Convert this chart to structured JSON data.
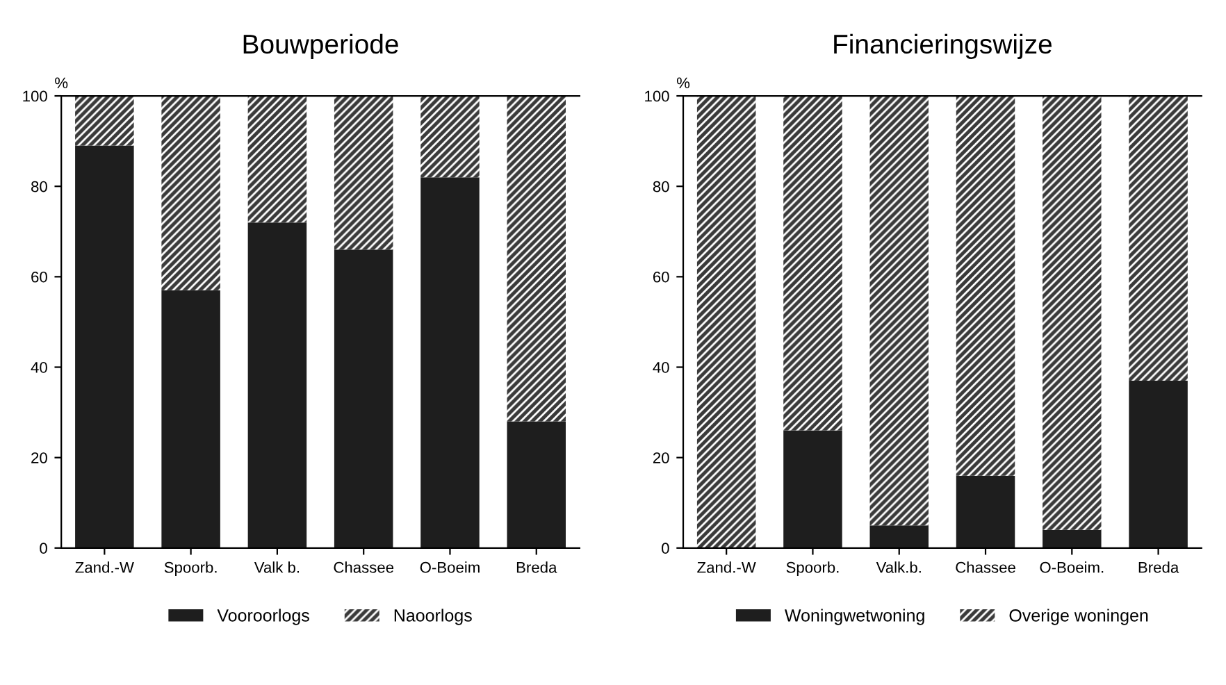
{
  "chart_data": [
    {
      "type": "bar",
      "title": "Bouwperiode",
      "ylabel": "%",
      "stacked": true,
      "legend": "bottom",
      "grid": false,
      "categories": [
        "Zand.-W",
        "Spoorb.",
        "Valk b.",
        "Chassee",
        "O-Boeim",
        "Breda"
      ],
      "ylim": [
        0,
        100
      ],
      "yticks": [
        0,
        20,
        40,
        60,
        80,
        100
      ],
      "series": [
        {
          "name": "Vooroorlogs",
          "color": "#1e1e1e",
          "values": [
            89,
            57,
            72,
            66,
            82,
            28
          ]
        },
        {
          "name": "Naoorlogs",
          "color": "#3a3a3a",
          "values": [
            11,
            43,
            28,
            34,
            18,
            72
          ]
        }
      ]
    },
    {
      "type": "bar",
      "title": "Financieringswijze",
      "ylabel": "%",
      "stacked": true,
      "legend": "bottom",
      "grid": false,
      "categories": [
        "Zand.-W",
        "Spoorb.",
        "Valk.b.",
        "Chassee",
        "O-Boeim.",
        "Breda"
      ],
      "ylim": [
        0,
        100
      ],
      "yticks": [
        0,
        20,
        40,
        60,
        80,
        100
      ],
      "series": [
        {
          "name": "Woningwetwoning",
          "color": "#1e1e1e",
          "values": [
            0,
            26,
            5,
            16,
            4,
            37
          ]
        },
        {
          "name": "Overige woningen",
          "color": "#3a3a3a",
          "values": [
            100,
            74,
            95,
            84,
            96,
            63
          ]
        }
      ]
    }
  ]
}
